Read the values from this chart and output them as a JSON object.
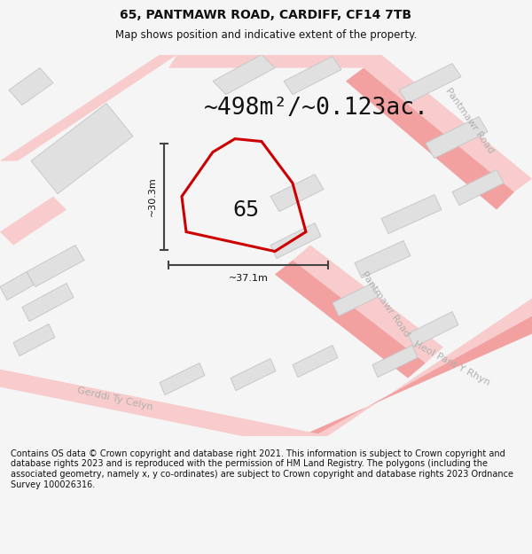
{
  "title": "65, PANTMAWR ROAD, CARDIFF, CF14 7TB",
  "subtitle": "Map shows position and indicative extent of the property.",
  "area_text": "~498m²/~0.123ac.",
  "label_65": "65",
  "dim_width": "~37.1m",
  "dim_height": "~30.3m",
  "footer": "Contains OS data © Crown copyright and database right 2021. This information is subject to Crown copyright and database rights 2023 and is reproduced with the permission of HM Land Registry. The polygons (including the associated geometry, namely x, y co-ordinates) are subject to Crown copyright and database rights 2023 Ordnance Survey 100026316.",
  "bg_color": "#f5f5f5",
  "map_bg": "#ffffff",
  "title_fontsize": 10,
  "subtitle_fontsize": 8.5,
  "area_fontsize": 19,
  "footer_fontsize": 7.0,
  "road_color_pink": "#f2a0a0",
  "road_color_light": "#f8cccc",
  "building_fill": "#e0e0e0",
  "building_stroke": "#c8c8c8",
  "property_fill": "none",
  "property_stroke": "#cc0000",
  "road_label_color": "#b0b0b0",
  "dim_line_color": "#444444",
  "separator_color": "#cccccc"
}
